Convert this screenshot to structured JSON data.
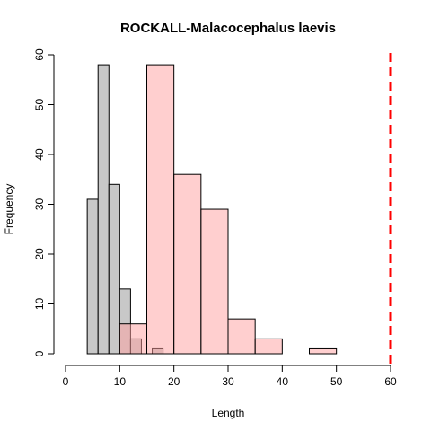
{
  "chart_data": {
    "type": "bar",
    "title": "ROCKALL-Malacocephalus laevis",
    "xlabel": "Length",
    "ylabel": "Frequency",
    "xlim": [
      0,
      60
    ],
    "ylim": [
      0,
      60
    ],
    "x_ticks": [
      "0",
      "10",
      "20",
      "30",
      "40",
      "50",
      "60"
    ],
    "y_ticks": [
      "0",
      "10",
      "20",
      "30",
      "40",
      "50",
      "60"
    ],
    "grid": false,
    "series": [
      {
        "color": "#c8c8c8",
        "bins": [
          {
            "x0": 4,
            "x1": 6,
            "count": 31
          },
          {
            "x0": 6,
            "x1": 8,
            "count": 58
          },
          {
            "x0": 8,
            "x1": 10,
            "count": 34
          },
          {
            "x0": 10,
            "x1": 12,
            "count": 13
          },
          {
            "x0": 12,
            "x1": 14,
            "count": 3
          },
          {
            "x0": 14,
            "x1": 16,
            "count": 0
          },
          {
            "x0": 16,
            "x1": 18,
            "count": 1
          }
        ]
      },
      {
        "color": "rgba(255,160,160,0.5)",
        "bins": [
          {
            "x0": 10,
            "x1": 15,
            "count": 6
          },
          {
            "x0": 15,
            "x1": 20,
            "count": 58
          },
          {
            "x0": 20,
            "x1": 25,
            "count": 36
          },
          {
            "x0": 25,
            "x1": 30,
            "count": 29
          },
          {
            "x0": 30,
            "x1": 35,
            "count": 7
          },
          {
            "x0": 35,
            "x1": 40,
            "count": 3
          },
          {
            "x0": 40,
            "x1": 45,
            "count": 0
          },
          {
            "x0": 45,
            "x1": 50,
            "count": 1
          }
        ]
      }
    ],
    "reference_line": {
      "x": 60,
      "color": "#ff0000",
      "style": "dashed"
    }
  }
}
